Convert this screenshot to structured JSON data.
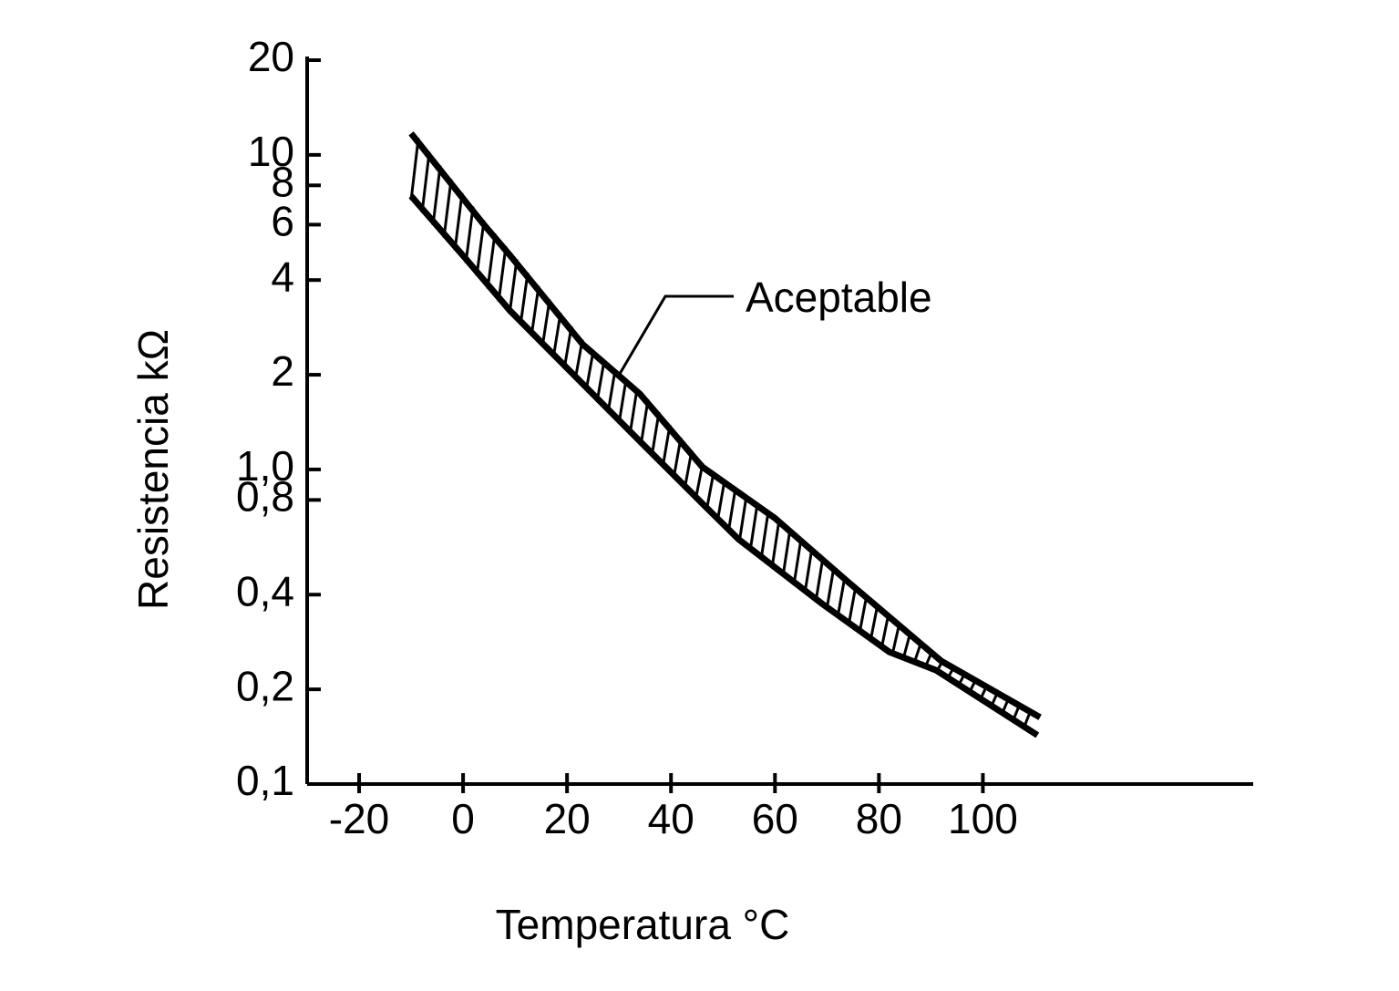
{
  "chart_data": {
    "type": "line",
    "xlabel": "Temperatura °C",
    "ylabel": "Resistencia kΩ",
    "annotation": "Aceptable",
    "yscale": "log",
    "xlim": [
      -30,
      152
    ],
    "ylim": [
      0.1,
      20
    ],
    "xticks": [
      -20,
      0,
      20,
      40,
      60,
      80,
      100
    ],
    "yticks": [
      20,
      10,
      8,
      6,
      4,
      2,
      {
        "value": 1.0,
        "label": "1,0"
      },
      {
        "value": 0.8,
        "label": "0,8"
      },
      {
        "value": 0.4,
        "label": "0,4"
      },
      {
        "value": 0.2,
        "label": "0,2"
      },
      {
        "value": 0.1,
        "label": "0,1"
      }
    ],
    "series": [
      {
        "color": "#000000",
        "x": [
          -10,
          4,
          9,
          23,
          34,
          46,
          60,
          74,
          92,
          111
        ],
        "values": [
          11.7,
          6.0,
          4.8,
          2.5,
          1.74,
          1.02,
          0.7,
          0.44,
          0.246,
          0.163
        ]
      },
      {
        "color": "#000000",
        "x": [
          -10,
          0.4,
          9,
          21.4,
          34,
          46,
          53,
          69,
          82,
          91,
          110.5
        ],
        "values": [
          7.4,
          4.7,
          3.2,
          1.99,
          1.23,
          0.78,
          0.6,
          0.375,
          0.263,
          0.23,
          0.143
        ]
      }
    ]
  }
}
